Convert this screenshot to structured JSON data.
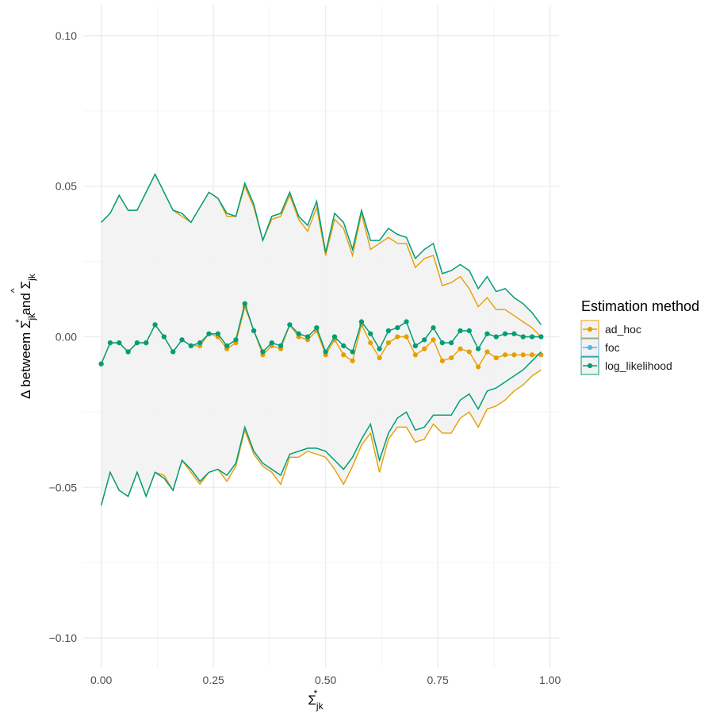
{
  "chart_data": {
    "type": "line",
    "title": "",
    "xlabel_parts": {
      "base": "Σ",
      "sub": "jk",
      "sup": "*"
    },
    "ylabel_parts": {
      "prefix": "Δ betweem ",
      "sym1": "Σ",
      "sub1": "jk",
      "sup1": "*",
      "mid": " and ",
      "sym2": "Σ",
      "hat2": "^",
      "sub2": "jk"
    },
    "xlim": [
      -0.04,
      1.02
    ],
    "ylim": [
      -0.11,
      0.11
    ],
    "x_ticks": [
      0,
      0.25,
      0.5,
      0.75,
      1.0
    ],
    "x_tick_labels": [
      "0.00",
      "0.25",
      "0.50",
      "0.75",
      "1.00"
    ],
    "y_ticks": [
      -0.1,
      -0.05,
      0,
      0.05,
      0.1
    ],
    "y_tick_labels": [
      "−0.10",
      "−0.05",
      "0.00",
      "0.05",
      "0.10"
    ],
    "grid": true,
    "legend": {
      "title": "Estimation method",
      "position": "right",
      "entries": [
        "ad_hoc",
        "foc",
        "log_likelihood"
      ]
    },
    "band_color": "#f2f2f2",
    "x": [
      0,
      0.02,
      0.04,
      0.06,
      0.08,
      0.1,
      0.12,
      0.14,
      0.16,
      0.18,
      0.2,
      0.22,
      0.24,
      0.26,
      0.28,
      0.3,
      0.32,
      0.34,
      0.36,
      0.38,
      0.4,
      0.42,
      0.44,
      0.46,
      0.48,
      0.5,
      0.52,
      0.54,
      0.56,
      0.58,
      0.6,
      0.62,
      0.64,
      0.66,
      0.68,
      0.7,
      0.72,
      0.74,
      0.76,
      0.78,
      0.8,
      0.82,
      0.84,
      0.86,
      0.88,
      0.9,
      0.92,
      0.94,
      0.96,
      0.98
    ],
    "series": [
      {
        "name": "ad_hoc",
        "color": "#E69F00",
        "mean": [
          -0.009,
          -0.002,
          -0.002,
          -0.005,
          -0.002,
          -0.002,
          0.004,
          0.0,
          -0.005,
          -0.001,
          -0.003,
          -0.003,
          0.001,
          0.0,
          -0.004,
          -0.002,
          0.01,
          0.002,
          -0.006,
          -0.003,
          -0.004,
          0.004,
          0.0,
          -0.001,
          0.002,
          -0.006,
          -0.001,
          -0.006,
          -0.008,
          0.004,
          -0.002,
          -0.007,
          -0.002,
          0.0,
          0.0,
          -0.006,
          -0.004,
          -0.001,
          -0.008,
          -0.007,
          -0.004,
          -0.005,
          -0.01,
          -0.005,
          -0.007,
          -0.006,
          -0.006,
          -0.006,
          -0.006,
          -0.006
        ],
        "upper": [
          0.038,
          0.041,
          0.047,
          0.042,
          0.042,
          0.048,
          0.054,
          0.048,
          0.042,
          0.04,
          0.038,
          0.043,
          0.048,
          0.046,
          0.04,
          0.04,
          0.05,
          0.043,
          0.032,
          0.039,
          0.04,
          0.047,
          0.039,
          0.035,
          0.043,
          0.027,
          0.039,
          0.036,
          0.027,
          0.041,
          0.029,
          0.031,
          0.033,
          0.031,
          0.031,
          0.023,
          0.026,
          0.027,
          0.017,
          0.018,
          0.02,
          0.016,
          0.01,
          0.013,
          0.009,
          0.009,
          0.007,
          0.005,
          0.003,
          0.0
        ],
        "lower": [
          -0.056,
          -0.045,
          -0.051,
          -0.053,
          -0.045,
          -0.053,
          -0.045,
          -0.046,
          -0.051,
          -0.041,
          -0.045,
          -0.049,
          -0.045,
          -0.044,
          -0.048,
          -0.043,
          -0.031,
          -0.039,
          -0.043,
          -0.045,
          -0.049,
          -0.04,
          -0.04,
          -0.038,
          -0.039,
          -0.04,
          -0.044,
          -0.049,
          -0.043,
          -0.036,
          -0.032,
          -0.045,
          -0.034,
          -0.03,
          -0.03,
          -0.035,
          -0.034,
          -0.029,
          -0.032,
          -0.032,
          -0.027,
          -0.025,
          -0.03,
          -0.024,
          -0.023,
          -0.021,
          -0.018,
          -0.016,
          -0.013,
          -0.011
        ]
      },
      {
        "name": "foc",
        "color": "#56B4E9",
        "mean": [
          -0.009,
          -0.002,
          -0.002,
          -0.005,
          -0.002,
          -0.002,
          0.004,
          0.0,
          -0.005,
          -0.001,
          -0.003,
          -0.002,
          0.001,
          0.001,
          -0.003,
          -0.001,
          0.011,
          0.002,
          -0.005,
          -0.002,
          -0.003,
          0.004,
          0.001,
          0.0,
          0.003,
          -0.005,
          0.0,
          -0.003,
          -0.005,
          0.005,
          0.001,
          -0.004,
          0.002,
          0.003,
          0.005,
          -0.003,
          -0.001,
          0.003,
          -0.002,
          -0.002,
          0.002,
          0.002,
          -0.004,
          0.001,
          0.0,
          0.001,
          0.001,
          0.0,
          0.0,
          0.0
        ],
        "upper": [
          0.038,
          0.041,
          0.047,
          0.042,
          0.042,
          0.048,
          0.054,
          0.048,
          0.042,
          0.041,
          0.038,
          0.043,
          0.048,
          0.046,
          0.041,
          0.04,
          0.051,
          0.044,
          0.032,
          0.04,
          0.041,
          0.048,
          0.04,
          0.037,
          0.045,
          0.028,
          0.041,
          0.038,
          0.029,
          0.042,
          0.032,
          0.032,
          0.036,
          0.034,
          0.033,
          0.026,
          0.029,
          0.031,
          0.021,
          0.022,
          0.024,
          0.022,
          0.016,
          0.02,
          0.015,
          0.016,
          0.013,
          0.011,
          0.008,
          0.004
        ],
        "lower": [
          -0.056,
          -0.045,
          -0.051,
          -0.053,
          -0.045,
          -0.053,
          -0.045,
          -0.047,
          -0.051,
          -0.041,
          -0.044,
          -0.048,
          -0.045,
          -0.044,
          -0.046,
          -0.042,
          -0.03,
          -0.038,
          -0.042,
          -0.044,
          -0.046,
          -0.039,
          -0.038,
          -0.037,
          -0.037,
          -0.038,
          -0.041,
          -0.044,
          -0.04,
          -0.034,
          -0.029,
          -0.041,
          -0.032,
          -0.027,
          -0.025,
          -0.031,
          -0.03,
          -0.026,
          -0.026,
          -0.026,
          -0.021,
          -0.019,
          -0.024,
          -0.018,
          -0.017,
          -0.015,
          -0.013,
          -0.011,
          -0.008,
          -0.005
        ]
      },
      {
        "name": "log_likelihood",
        "color": "#009E73",
        "mean": [
          -0.009,
          -0.002,
          -0.002,
          -0.005,
          -0.002,
          -0.002,
          0.004,
          0.0,
          -0.005,
          -0.001,
          -0.003,
          -0.002,
          0.001,
          0.001,
          -0.003,
          -0.001,
          0.011,
          0.002,
          -0.005,
          -0.002,
          -0.003,
          0.004,
          0.001,
          0.0,
          0.003,
          -0.005,
          0.0,
          -0.003,
          -0.005,
          0.005,
          0.001,
          -0.004,
          0.002,
          0.003,
          0.005,
          -0.003,
          -0.001,
          0.003,
          -0.002,
          -0.002,
          0.002,
          0.002,
          -0.004,
          0.001,
          0.0,
          0.001,
          0.001,
          0.0,
          0.0,
          0.0
        ],
        "upper": [
          0.038,
          0.041,
          0.047,
          0.042,
          0.042,
          0.048,
          0.054,
          0.048,
          0.042,
          0.041,
          0.038,
          0.043,
          0.048,
          0.046,
          0.041,
          0.04,
          0.051,
          0.044,
          0.032,
          0.04,
          0.041,
          0.048,
          0.04,
          0.037,
          0.045,
          0.028,
          0.041,
          0.038,
          0.029,
          0.042,
          0.032,
          0.032,
          0.036,
          0.034,
          0.033,
          0.026,
          0.029,
          0.031,
          0.021,
          0.022,
          0.024,
          0.022,
          0.016,
          0.02,
          0.015,
          0.016,
          0.013,
          0.011,
          0.008,
          0.004
        ],
        "lower": [
          -0.056,
          -0.045,
          -0.051,
          -0.053,
          -0.045,
          -0.053,
          -0.045,
          -0.047,
          -0.051,
          -0.041,
          -0.044,
          -0.048,
          -0.045,
          -0.044,
          -0.046,
          -0.042,
          -0.03,
          -0.038,
          -0.042,
          -0.044,
          -0.046,
          -0.039,
          -0.038,
          -0.037,
          -0.037,
          -0.038,
          -0.041,
          -0.044,
          -0.04,
          -0.034,
          -0.029,
          -0.041,
          -0.032,
          -0.027,
          -0.025,
          -0.031,
          -0.03,
          -0.026,
          -0.026,
          -0.026,
          -0.021,
          -0.019,
          -0.024,
          -0.018,
          -0.017,
          -0.015,
          -0.013,
          -0.011,
          -0.008,
          -0.005
        ]
      }
    ]
  }
}
